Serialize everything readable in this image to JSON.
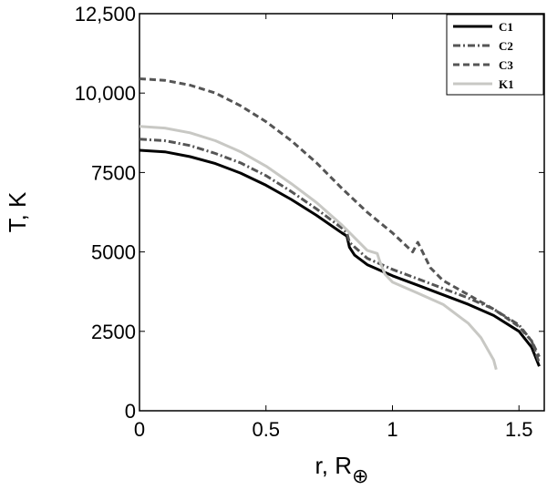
{
  "chart_data": {
    "type": "line",
    "title": "",
    "xlabel": "r, R",
    "xlabel_subscript": "⊕",
    "ylabel": "T, K",
    "xlim": [
      0,
      1.6
    ],
    "ylim": [
      0,
      12500
    ],
    "xticks": [
      0,
      0.5,
      1,
      1.5
    ],
    "xtick_labels": [
      "0",
      "0.5",
      "1",
      "1.5"
    ],
    "yticks": [
      0,
      2500,
      5000,
      7500,
      10000,
      12500
    ],
    "ytick_labels": [
      "0",
      "2500",
      "5000",
      "7500",
      "10,000",
      "12,500"
    ],
    "grid": false,
    "legend": "top-right",
    "series": [
      {
        "name": "C1",
        "style": "solid",
        "color": "#000000",
        "x": [
          0,
          0.1,
          0.2,
          0.3,
          0.4,
          0.5,
          0.6,
          0.7,
          0.8,
          0.82,
          0.83,
          0.85,
          0.9,
          1.0,
          1.1,
          1.2,
          1.3,
          1.4,
          1.5,
          1.55,
          1.58
        ],
        "y": [
          8200,
          8150,
          8000,
          7780,
          7480,
          7100,
          6650,
          6150,
          5600,
          5500,
          5150,
          4900,
          4600,
          4250,
          3950,
          3650,
          3350,
          3000,
          2500,
          2000,
          1400
        ]
      },
      {
        "name": "C2",
        "style": "dashdot",
        "color": "#555555",
        "x": [
          0,
          0.1,
          0.2,
          0.3,
          0.4,
          0.5,
          0.6,
          0.7,
          0.8,
          0.82,
          0.83,
          0.9,
          1.0,
          1.1,
          1.2,
          1.3,
          1.4,
          1.5,
          1.55,
          1.58
        ],
        "y": [
          8550,
          8500,
          8350,
          8100,
          7800,
          7400,
          6900,
          6350,
          5750,
          5600,
          5300,
          4800,
          4450,
          4150,
          3850,
          3550,
          3200,
          2700,
          2200,
          1500
        ]
      },
      {
        "name": "C3",
        "style": "dashed",
        "color": "#555555",
        "x": [
          0,
          0.1,
          0.2,
          0.3,
          0.4,
          0.5,
          0.6,
          0.7,
          0.8,
          0.9,
          1.0,
          1.08,
          1.1,
          1.15,
          1.2,
          1.3,
          1.4,
          1.5,
          1.55,
          1.58
        ],
        "y": [
          10450,
          10400,
          10250,
          10000,
          9600,
          9100,
          8500,
          7800,
          7000,
          6250,
          5600,
          5000,
          5300,
          4500,
          4100,
          3650,
          3200,
          2650,
          2200,
          1700
        ]
      },
      {
        "name": "K1",
        "style": "solid",
        "color": "#c8c8c4",
        "x": [
          0,
          0.1,
          0.2,
          0.3,
          0.4,
          0.5,
          0.6,
          0.7,
          0.8,
          0.9,
          0.94,
          0.95,
          0.97,
          1.0,
          1.1,
          1.2,
          1.3,
          1.35,
          1.4,
          1.41
        ],
        "y": [
          8950,
          8900,
          8750,
          8500,
          8150,
          7700,
          7150,
          6550,
          5850,
          5050,
          4950,
          4700,
          4300,
          4050,
          3700,
          3350,
          2750,
          2300,
          1600,
          1300
        ]
      }
    ]
  }
}
